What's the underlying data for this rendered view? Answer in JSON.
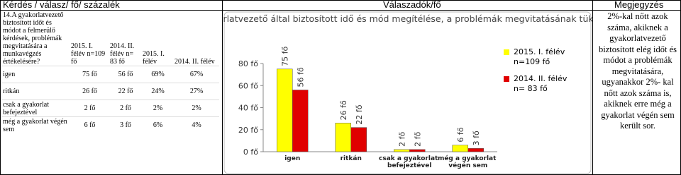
{
  "header": [
    "Kérdés / válasz/ fő/ százalék",
    "Válaszadók/fő",
    "Megjegyzés"
  ],
  "table": {
    "header": [
      "14.A gyakorlatvezető biztosított időt és módot a felmerülő kérdések, problémák megvitatására a munkavégzés értékelésére?",
      "2015. I. félév n=109 fő",
      "2014. II. félév n= 83 fő",
      "2015. I. félév",
      "2014. II. félév"
    ],
    "rows": [
      [
        "igen",
        "75 fő",
        "56 fő",
        "69%",
        "67%"
      ],
      [
        "ritkán",
        "26 fő",
        "22 fő",
        "24%",
        "27%"
      ],
      [
        "csak a gyakorlat befejeztével",
        "2 fő",
        "2 fő",
        "2%",
        "2%"
      ],
      [
        "még a gyakorlat végén sem",
        "6 fő",
        "3 fő",
        "6%",
        "4%"
      ]
    ]
  },
  "chart_data": {
    "type": "bar",
    "title": "Gyakorlatvezető által biztosított idő és mód megítélése, a problémák megvitatásának tükrében",
    "categories": [
      "igen",
      "ritkán",
      "csak a gyakorlat befejeztével",
      "még a gyakorlat végén sem"
    ],
    "series": [
      {
        "name": "2015. I. félév n=109 fő",
        "color": "#ffff00",
        "values": [
          75,
          26,
          2,
          6
        ],
        "value_labels": [
          "75 fő",
          "26 fő",
          "2 fő",
          "6 fő"
        ]
      },
      {
        "name": "2014. II. félév n= 83 fő",
        "color": "#e00000",
        "values": [
          56,
          22,
          2,
          3
        ],
        "value_labels": [
          "56 fő",
          "22 fő",
          "2 fő",
          "3 fő"
        ]
      }
    ],
    "ylim": [
      0,
      80
    ],
    "yticks": [
      {
        "value": 0,
        "label": "0 fő"
      },
      {
        "value": 20,
        "label": "20 fő"
      },
      {
        "value": 40,
        "label": "40 fő"
      },
      {
        "value": 60,
        "label": "60 fő"
      },
      {
        "value": 80,
        "label": "80 fő"
      }
    ],
    "legend": "right"
  },
  "note": "2%-kal nőtt azok száma, akiknek a gyakorlatvezető biztosított elég időt és módot a problémák megvitatására, ugyanakkor 2%- kal nőtt azok száma is, akiknek erre még a gyakorlat végén sem került sor."
}
